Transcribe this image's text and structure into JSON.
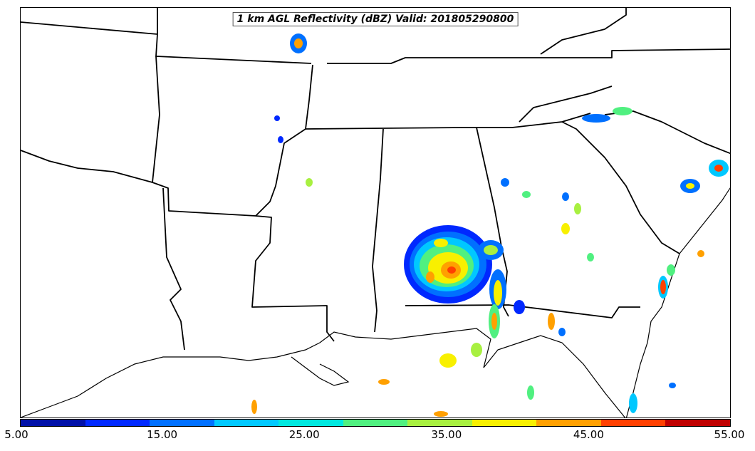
{
  "title": "1 km AGL Reflectivity (dBZ) Valid: 201805290800",
  "colorbar": {
    "colors": [
      "#0010a8",
      "#0028ff",
      "#0070ff",
      "#00c8ff",
      "#00e8e0",
      "#50f080",
      "#a8f040",
      "#f8f000",
      "#ffa000",
      "#ff4000",
      "#c00000"
    ],
    "ticks": [
      "5.00",
      "15.00",
      "25.00",
      "35.00",
      "45.00",
      "55.00"
    ]
  },
  "map": {
    "region": "Southeastern United States",
    "features": [
      "state-borders",
      "coastline",
      "reflectivity-echoes"
    ],
    "storm_center": "southeastern Alabama"
  }
}
